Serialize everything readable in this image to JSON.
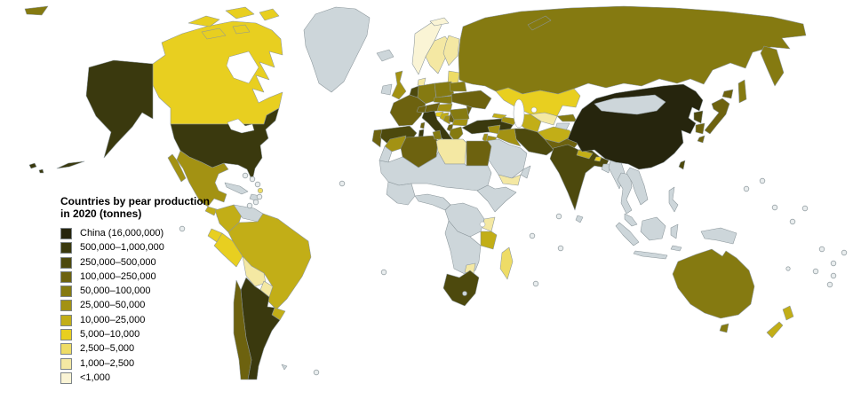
{
  "legend": {
    "title_line1": "Countries by pear production",
    "title_line2": "in 2020 (tonnes)",
    "items": [
      {
        "key": "c16m",
        "label": "China (16,000,000)",
        "color": "#26250d"
      },
      {
        "key": "c500k",
        "label": "500,000–1,000,000",
        "color": "#3a390e"
      },
      {
        "key": "c250k",
        "label": "250,000–500,000",
        "color": "#4d490d"
      },
      {
        "key": "c100k",
        "label": "100,000–250,000",
        "color": "#6d620f"
      },
      {
        "key": "c50k",
        "label": "50,000–100,000",
        "color": "#857a11"
      },
      {
        "key": "c25k",
        "label": "25,000–50,000",
        "color": "#a39213"
      },
      {
        "key": "c10k",
        "label": "10,000–25,000",
        "color": "#c2ae17"
      },
      {
        "key": "c5k",
        "label": "5,000–10,000",
        "color": "#e8cf20"
      },
      {
        "key": "c2500",
        "label": "2,500–5,000",
        "color": "#eedc66"
      },
      {
        "key": "c1000",
        "label": "1,000–2,500",
        "color": "#f4e8a3"
      },
      {
        "key": "c0",
        "label": "<1,000",
        "color": "#faf4d5"
      }
    ]
  },
  "map": {
    "sea_color": "#ffffff",
    "no_data_color": "#cdd6da",
    "border_color": "#8b969b",
    "island_fill": "#e9edee",
    "countries": {
      "united-states": "c500k",
      "canada": "c5k",
      "greenland": "nodata",
      "mexico": "c25k",
      "guatemala": "c10k",
      "central-america": "nodata",
      "cuba": "nodata",
      "hispaniola": "nodata",
      "colombia": "c10k",
      "venezuela": "nodata",
      "guianas": "nodata",
      "ecuador": "c5k",
      "peru": "c5k",
      "brazil": "c10k",
      "bolivia": "c1000",
      "paraguay": "c1000",
      "uruguay": "c10k",
      "argentina": "c500k",
      "chile": "c100k",
      "falkland-islands": "nodata",
      "caribbean-island-yellow": "c2500",
      "iceland": "nodata",
      "ireland": "nodata",
      "united-kingdom": "c25k",
      "norway": "c0",
      "sweden": "c1000",
      "finland": "c1000",
      "denmark": "c1000",
      "baltic-states": "c2500",
      "netherlands-belgium": "c250k",
      "germany": "c50k",
      "france": "c100k",
      "portugal": "c100k",
      "spain": "c250k",
      "switzerland": "c100k",
      "austria": "c100k",
      "czechia-slovakia": "c50k",
      "poland": "c50k",
      "hungary": "c25k",
      "slovenia": "c5k",
      "croatia": "c10k",
      "bosnia": "c25k",
      "serbia": "c100k",
      "albania": "c100k",
      "bulgaria": "c25k",
      "greece": "c50k",
      "romania": "c50k",
      "moldova": "c100k",
      "ukraine": "c100k",
      "belarus": "c50k",
      "italy": "c500k",
      "turkey": "c500k",
      "russia": "c50k",
      "kazakhstan": "c5k",
      "uzbekistan": "c1000",
      "turkmenistan": "c10k",
      "kyrgyzstan": "c50k",
      "tajikistan": "nodata",
      "afghanistan": "c10k",
      "pakistan": "c100k",
      "iran": "c250k",
      "iraq": "c25k",
      "syria": "c25k",
      "israel": "c25k",
      "jordan": "c25k",
      "saudi-arabia": "nodata",
      "yemen": "c1000",
      "oman": "nodata",
      "georgia": "c10k",
      "armenia-azerbaijan": "c25k",
      "india": "c250k",
      "nepal": "c10k",
      "bhutan": "c5k",
      "bangladesh": "nodata",
      "sri-lanka": "nodata",
      "myanmar": "nodata",
      "thailand": "nodata",
      "indochina": "nodata",
      "malaysia": "nodata",
      "indonesia": "nodata",
      "philippines": "nodata",
      "new-guinea": "nodata",
      "china": "c16m",
      "mongolia": "nodata",
      "taiwan": "c250k",
      "north-korea": "c250k",
      "south-korea": "c100k",
      "japan": "c100k",
      "morocco": "c25k",
      "western-sahara": "nodata",
      "algeria": "c100k",
      "tunisia": "c50k",
      "libya": "c1000",
      "egypt": "c100k",
      "sahel": "nodata",
      "west-africa": "nodata",
      "gulf-guinea": "nodata",
      "ethiopia-somalia": "nodata",
      "central-africa": "nodata",
      "kenya": "c1000",
      "tanzania": "c10k",
      "southern-africa": "nodata",
      "zimbabwe": "c1000",
      "south-africa": "c250k",
      "lesotho": "nodata",
      "madagascar": "c2500",
      "australia": "c50k",
      "new-zealand": "c10k"
    }
  }
}
